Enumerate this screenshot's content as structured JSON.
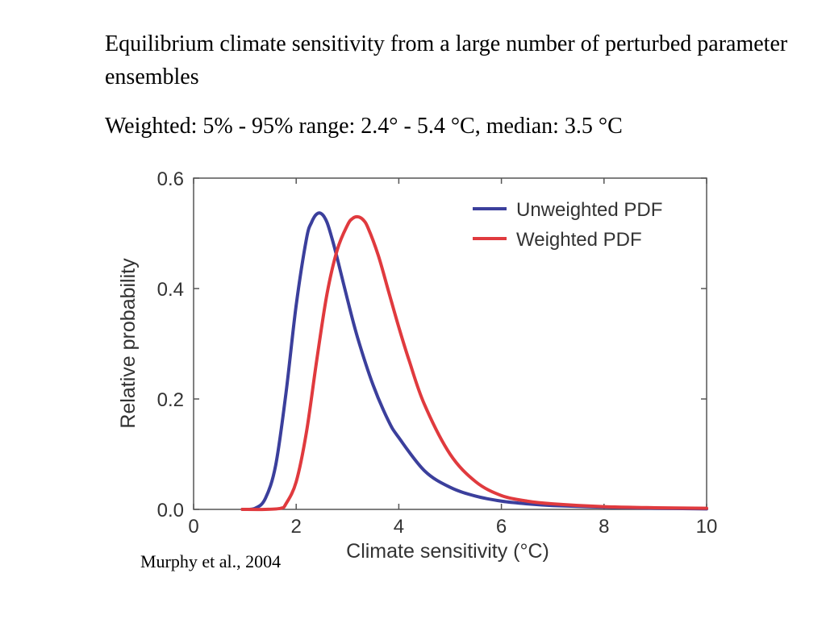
{
  "slide": {
    "title": "Equilibrium climate sensitivity from a large number of perturbed parameter ensembles",
    "subtitle": "Weighted:  5% - 95% range: 2.4° - 5.4 °C, median:  3.5 °C",
    "citation": "Murphy et al., 2004"
  },
  "chart_data": {
    "type": "line",
    "xlabel": "Climate sensitivity (°C)",
    "ylabel": "Relative probability",
    "xlim": [
      0,
      10
    ],
    "ylim": [
      0,
      0.6
    ],
    "xticks": [
      0,
      2,
      4,
      6,
      8,
      10
    ],
    "yticks": [
      0.0,
      0.2,
      0.4,
      0.6
    ],
    "ytick_labels": [
      "0.0",
      "0.2",
      "0.4",
      "0.6"
    ],
    "grid": false,
    "legend_position": "top-right",
    "series": [
      {
        "name": "Unweighted PDF",
        "color": "#3b3f9c",
        "x": [
          0.95,
          1.2,
          1.4,
          1.6,
          1.8,
          2.0,
          2.2,
          2.3,
          2.4,
          2.5,
          2.6,
          2.7,
          2.8,
          3.0,
          3.2,
          3.5,
          3.8,
          4.0,
          4.5,
          5.0,
          5.5,
          6.0,
          6.5,
          7.0,
          8.0,
          9.0,
          10.0
        ],
        "y": [
          0.0,
          0.002,
          0.02,
          0.08,
          0.21,
          0.37,
          0.49,
          0.52,
          0.535,
          0.535,
          0.52,
          0.49,
          0.455,
          0.38,
          0.31,
          0.225,
          0.16,
          0.13,
          0.07,
          0.04,
          0.024,
          0.015,
          0.01,
          0.007,
          0.004,
          0.002,
          0.001
        ]
      },
      {
        "name": "Weighted PDF",
        "color": "#e03a3e",
        "x": [
          0.95,
          1.4,
          1.7,
          1.8,
          2.0,
          2.2,
          2.4,
          2.6,
          2.8,
          3.0,
          3.1,
          3.2,
          3.3,
          3.4,
          3.6,
          3.8,
          4.0,
          4.2,
          4.5,
          5.0,
          5.5,
          6.0,
          6.5,
          7.0,
          8.0,
          9.0,
          10.0
        ],
        "y": [
          0.0,
          0.0,
          0.002,
          0.01,
          0.05,
          0.14,
          0.27,
          0.39,
          0.47,
          0.515,
          0.527,
          0.53,
          0.525,
          0.51,
          0.46,
          0.395,
          0.33,
          0.27,
          0.19,
          0.1,
          0.05,
          0.025,
          0.015,
          0.01,
          0.005,
          0.003,
          0.002
        ]
      }
    ]
  }
}
